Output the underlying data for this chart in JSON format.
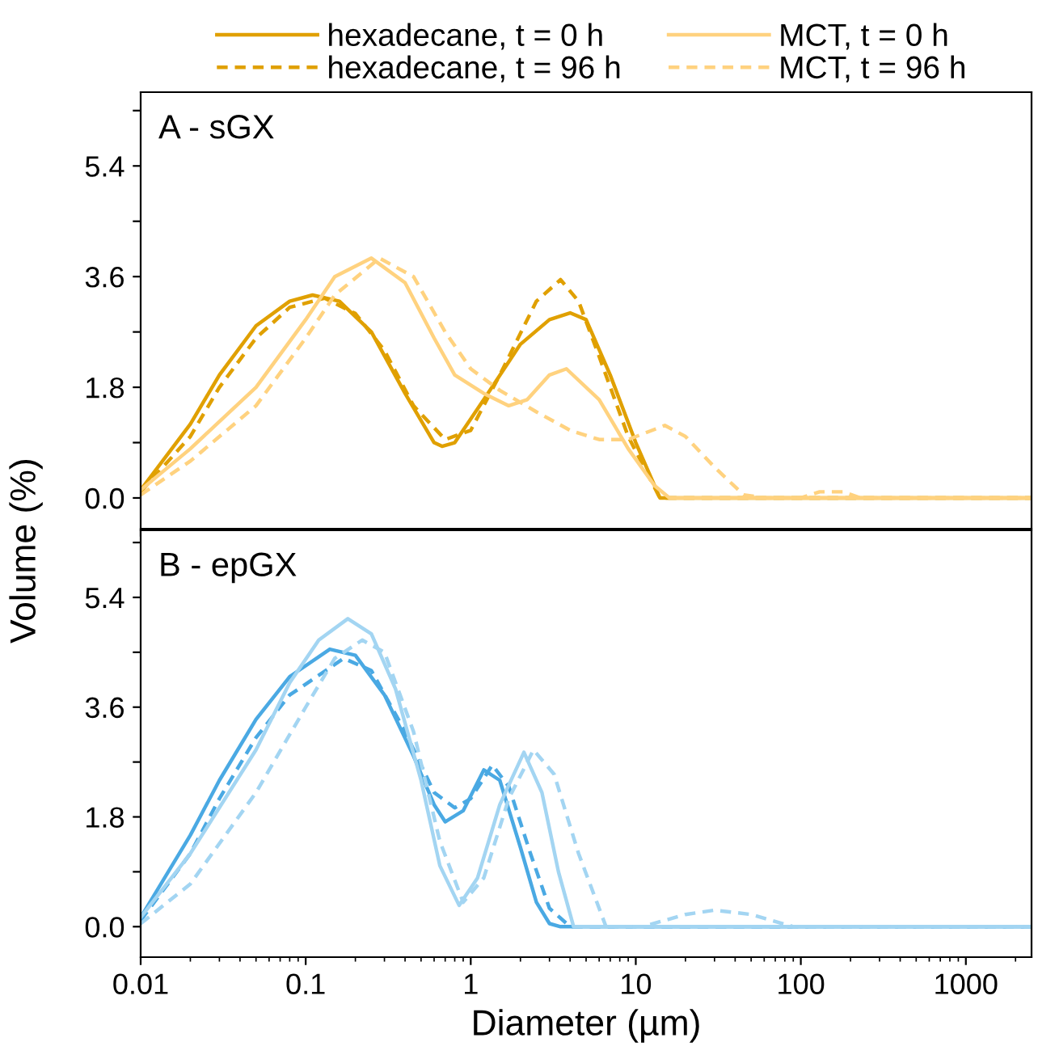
{
  "chart_data": [
    {
      "type": "line",
      "title": "A - sGX",
      "ylabel": "Volume (%)",
      "log": "x",
      "xlim": [
        0.01,
        2500
      ],
      "ylim": [
        -0.5,
        6.6
      ],
      "yticks": [
        {
          "value": 0,
          "label": "0.0"
        },
        {
          "value": 0.9,
          "label": null
        },
        {
          "value": 1.8,
          "label": "1.8"
        },
        {
          "value": 2.7,
          "label": null
        },
        {
          "value": 3.6,
          "label": "3.6"
        },
        {
          "value": 4.5,
          "label": null
        },
        {
          "value": 5.4,
          "label": "5.4"
        },
        {
          "value": 6.3,
          "label": null
        }
      ],
      "xticks": [
        0.01,
        0.1,
        1,
        10,
        100,
        1000
      ],
      "tick_labels": "y",
      "legend": "top",
      "grid": false,
      "series": [
        {
          "name": "hexadecane, t = 0 h",
          "color": "#e0a000",
          "line_style": "solid",
          "x": [
            0.01,
            0.02,
            0.03,
            0.05,
            0.08,
            0.11,
            0.16,
            0.25,
            0.4,
            0.6,
            0.67,
            0.8,
            1.2,
            2,
            3,
            4,
            5,
            7,
            10,
            14,
            2500
          ],
          "values": [
            0.13,
            1.2,
            2.0,
            2.8,
            3.2,
            3.3,
            3.2,
            2.7,
            1.7,
            0.9,
            0.84,
            0.9,
            1.6,
            2.5,
            2.9,
            3.01,
            2.9,
            2.0,
            0.9,
            0.0,
            0.0
          ]
        },
        {
          "name": "hexadecane, t = 96 h",
          "color": "#e0a000",
          "line_style": "dashed",
          "x": [
            0.01,
            0.02,
            0.03,
            0.05,
            0.08,
            0.13,
            0.2,
            0.3,
            0.45,
            0.7,
            1,
            1.5,
            2.5,
            3.5,
            4.5,
            6,
            9,
            14,
            2500
          ],
          "values": [
            0.1,
            1.0,
            1.8,
            2.6,
            3.1,
            3.25,
            3.0,
            2.4,
            1.5,
            0.95,
            1.1,
            2.0,
            3.2,
            3.55,
            3.2,
            2.3,
            1.0,
            0.0,
            0.0
          ]
        },
        {
          "name": "MCT, t = 0 h",
          "color": "#ffd27f",
          "line_style": "solid",
          "x": [
            0.01,
            0.02,
            0.05,
            0.1,
            0.15,
            0.25,
            0.4,
            0.6,
            0.8,
            1.2,
            1.7,
            2.2,
            3,
            3.8,
            6,
            9,
            13,
            16,
            2500
          ],
          "values": [
            0.13,
            0.8,
            1.8,
            2.9,
            3.6,
            3.9,
            3.5,
            2.6,
            2.0,
            1.7,
            1.5,
            1.6,
            2.0,
            2.1,
            1.6,
            0.8,
            0.2,
            0.0,
            0.0
          ]
        },
        {
          "name": "MCT, t = 96 h",
          "color": "#ffd27f",
          "line_style": "dashed",
          "x": [
            0.01,
            0.02,
            0.05,
            0.1,
            0.15,
            0.28,
            0.45,
            0.7,
            1,
            1.5,
            2.5,
            4,
            6,
            9,
            15,
            20,
            30,
            45,
            60,
            100,
            130,
            180,
            230,
            2500
          ],
          "values": [
            0.05,
            0.6,
            1.5,
            2.6,
            3.3,
            3.9,
            3.6,
            2.7,
            2.1,
            1.75,
            1.4,
            1.1,
            0.95,
            0.95,
            1.18,
            1.0,
            0.5,
            0.05,
            0.0,
            0.0,
            0.1,
            0.1,
            0.0,
            0.0
          ]
        }
      ]
    },
    {
      "type": "line",
      "title": "B - epGX",
      "xlabel": "Diameter (µm)",
      "log": "x",
      "xlim": [
        0.01,
        2500
      ],
      "ylim": [
        -0.5,
        6.5
      ],
      "yticks": [
        {
          "value": 0,
          "label": "0.0"
        },
        {
          "value": 0.9,
          "label": null
        },
        {
          "value": 1.8,
          "label": "1.8"
        },
        {
          "value": 2.7,
          "label": null
        },
        {
          "value": 3.6,
          "label": "3.6"
        },
        {
          "value": 4.5,
          "label": null
        },
        {
          "value": 5.4,
          "label": "5.4"
        },
        {
          "value": 6.3,
          "label": null
        }
      ],
      "xticks": [
        0.01,
        0.1,
        1,
        10,
        100,
        1000
      ],
      "grid": false,
      "series": [
        {
          "color": "#4aa9e3",
          "line_style": "solid",
          "x": [
            0.01,
            0.02,
            0.03,
            0.05,
            0.08,
            0.14,
            0.2,
            0.3,
            0.45,
            0.6,
            0.7,
            0.9,
            1.2,
            1.5,
            2,
            2.5,
            3,
            3.5,
            2500
          ],
          "values": [
            0.15,
            1.5,
            2.4,
            3.4,
            4.1,
            4.55,
            4.45,
            3.8,
            2.8,
            2.0,
            1.72,
            1.9,
            2.57,
            2.4,
            1.3,
            0.4,
            0.05,
            0.0,
            0.0
          ]
        },
        {
          "color": "#4aa9e3",
          "line_style": "dashed",
          "x": [
            0.01,
            0.02,
            0.03,
            0.05,
            0.08,
            0.17,
            0.25,
            0.4,
            0.6,
            0.8,
            1.0,
            1.35,
            1.7,
            2.3,
            3,
            4,
            2500
          ],
          "values": [
            0.1,
            1.2,
            2.1,
            3.1,
            3.8,
            4.4,
            4.2,
            3.2,
            2.2,
            1.95,
            2.1,
            2.65,
            2.3,
            1.2,
            0.3,
            0.0,
            0.0
          ]
        },
        {
          "color": "#a3d5f2",
          "line_style": "solid",
          "x": [
            0.01,
            0.02,
            0.05,
            0.08,
            0.12,
            0.18,
            0.25,
            0.35,
            0.5,
            0.65,
            0.85,
            1.1,
            1.5,
            2.1,
            2.7,
            3.4,
            4.2,
            2500
          ],
          "values": [
            0.15,
            1.2,
            2.9,
            4.0,
            4.7,
            5.05,
            4.8,
            3.9,
            2.4,
            1.0,
            0.35,
            0.8,
            2.0,
            2.86,
            2.2,
            0.9,
            0.0,
            0.0
          ]
        },
        {
          "color": "#a3d5f2",
          "line_style": "dashed",
          "x": [
            0.01,
            0.02,
            0.05,
            0.1,
            0.15,
            0.22,
            0.3,
            0.45,
            0.65,
            0.9,
            1.2,
            1.7,
            2.4,
            3.2,
            4.5,
            6.6,
            11,
            20,
            30,
            50,
            90,
            2500
          ],
          "values": [
            0.05,
            0.7,
            2.2,
            3.6,
            4.4,
            4.7,
            4.5,
            3.2,
            1.4,
            0.4,
            0.8,
            2.1,
            2.9,
            2.5,
            1.2,
            0.0,
            0.0,
            0.2,
            0.27,
            0.2,
            0.0,
            0.0
          ]
        }
      ]
    }
  ]
}
